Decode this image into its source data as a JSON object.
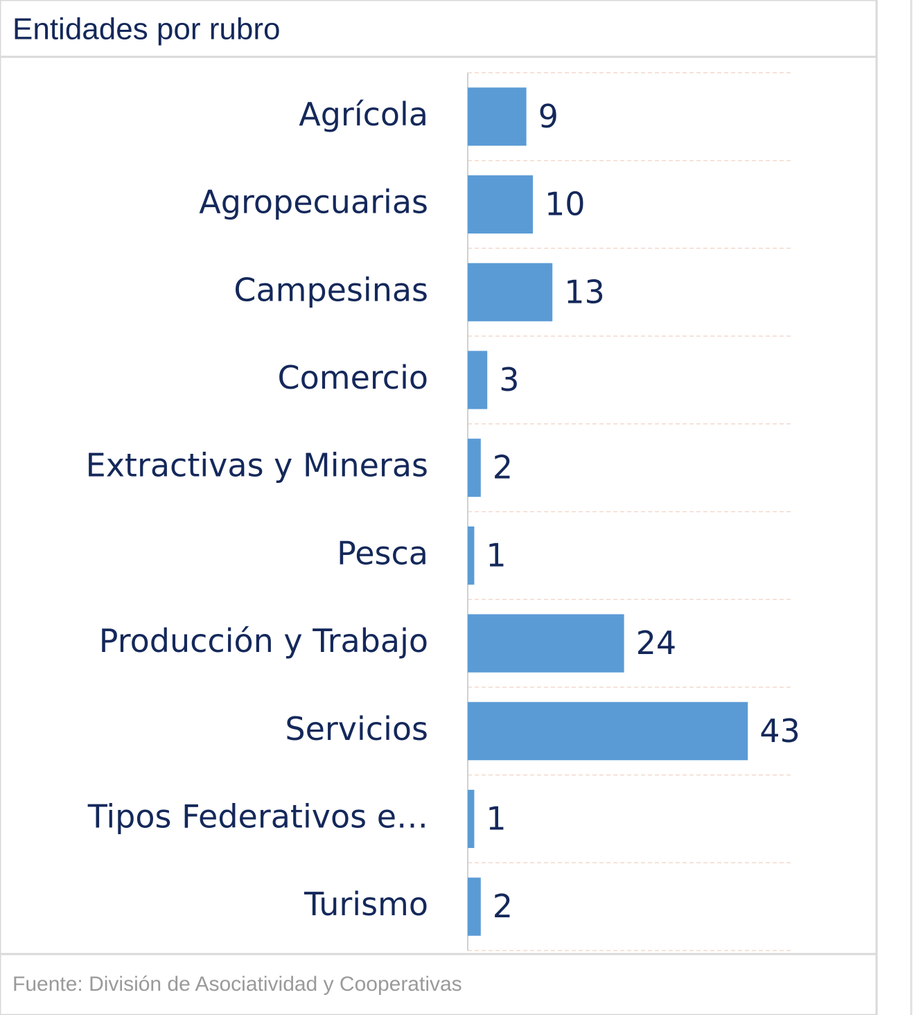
{
  "chart_data": {
    "type": "barh",
    "title": "Entidades por rubro",
    "categories": [
      "Agrícola",
      "Agropecuarias",
      "Campesinas",
      "Comercio",
      "Extractivas y Mineras",
      "Pesca",
      "Producción y Trabajo",
      "Servicios",
      "Tipos Federativos e…",
      "Turismo"
    ],
    "values": [
      9,
      10,
      13,
      3,
      2,
      1,
      24,
      43,
      1,
      2
    ],
    "color": "#5b9bd5",
    "xlim": [
      0,
      50
    ],
    "source": "Fuente: División de Asociatividad y Cooperativas"
  }
}
